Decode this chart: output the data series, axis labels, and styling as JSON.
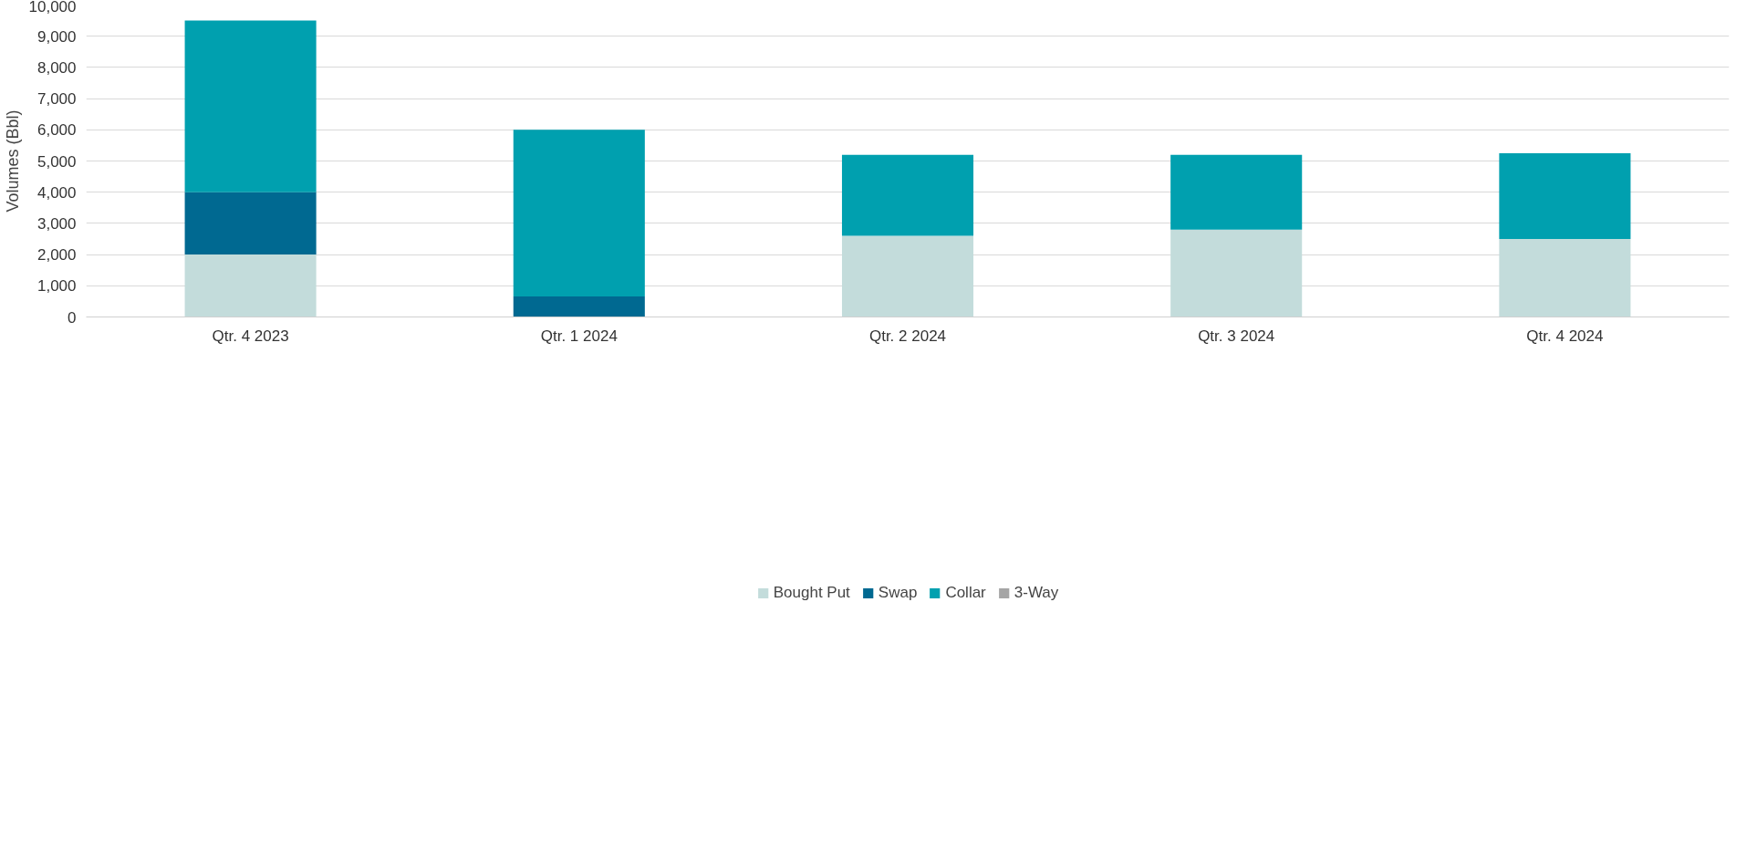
{
  "chart_data": {
    "type": "bar",
    "stacked": true,
    "ylabel": "Volumes (Bbl)",
    "categories": [
      "Qtr. 4 2023",
      "Qtr. 1 2024",
      "Qtr. 2 2024",
      "Qtr. 3 2024",
      "Qtr. 4 2024"
    ],
    "series": [
      {
        "name": "Bought Put",
        "color": "#c3dcdb",
        "values": [
          2000,
          0,
          2600,
          2800,
          2500
        ]
      },
      {
        "name": "Swap",
        "color": "#006991",
        "values": [
          2000,
          660,
          0,
          0,
          0
        ]
      },
      {
        "name": "Collar",
        "color": "#00a0af",
        "values": [
          5500,
          5340,
          2600,
          2400,
          2750
        ]
      },
      {
        "name": "3-Way",
        "color": "#a5a5a5",
        "values": [
          0,
          0,
          0,
          0,
          0
        ]
      }
    ],
    "ylim": [
      0,
      10000
    ],
    "yticks": [
      {
        "value": 0,
        "label": "0"
      },
      {
        "value": 1000,
        "label": "1,000"
      },
      {
        "value": 2000,
        "label": "2,000"
      },
      {
        "value": 3000,
        "label": "3,000"
      },
      {
        "value": 4000,
        "label": "4,000"
      },
      {
        "value": 5000,
        "label": "5,000"
      },
      {
        "value": 6000,
        "label": "6,000"
      },
      {
        "value": 7000,
        "label": "7,000"
      },
      {
        "value": 8000,
        "label": "8,000"
      },
      {
        "value": 9000,
        "label": "9,000"
      },
      {
        "value": 10000,
        "label": "10,000"
      }
    ],
    "grid": "y",
    "legend": "bottom"
  }
}
